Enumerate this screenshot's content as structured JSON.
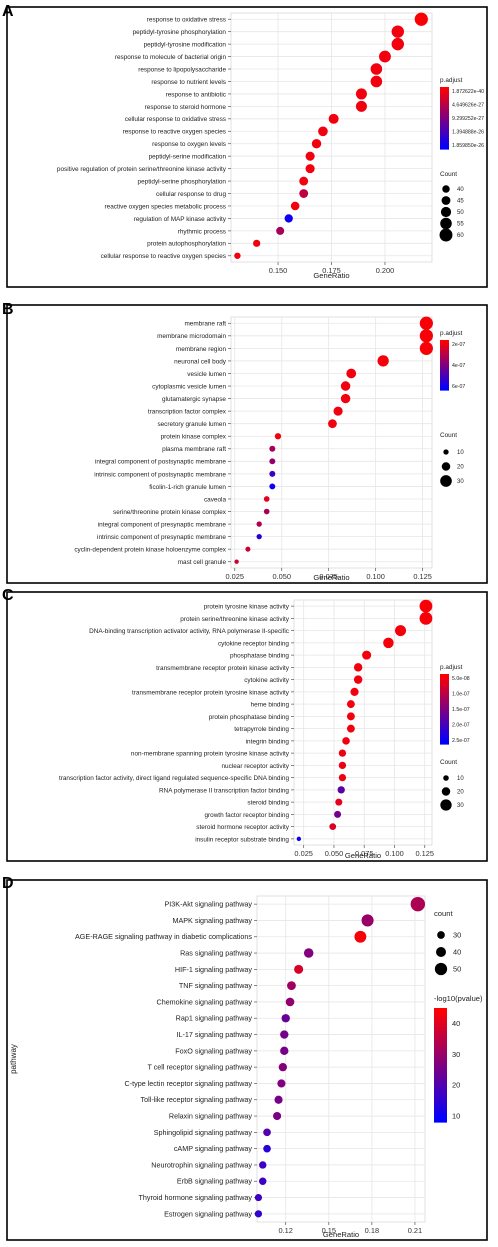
{
  "chart_data": [
    {
      "panel": "A",
      "type": "scatter",
      "xlabel": "GeneRatio",
      "ylabel": "",
      "x_ticks": [
        0.15,
        0.175,
        0.2
      ],
      "x_tick_labels": [
        "0.150",
        "0.175",
        "0.200"
      ],
      "xlim": [
        0.128,
        0.222
      ],
      "categories": [
        "response to oxidative stress",
        "peptidyl-tyrosine phosphorylation",
        "peptidyl-tyrosine modification",
        "response to molecule of bacterial origin",
        "response to lipopolysaccharide",
        "response to nutrient levels",
        "response to antibiotic",
        "response to steroid hormone",
        "cellular response to oxidative stress",
        "response to reactive oxygen species",
        "response to oxygen levels",
        "peptidyl-serine modification",
        "positive regulation of protein serine/threonine kinase activity",
        "peptidyl-serine phosphorylation",
        "cellular response to drug",
        "reactive oxygen species metabolic process",
        "regulation of MAP kinase activity",
        "rhythmic process",
        "protein autophosphorylation",
        "cellular response to reactive oxygen species"
      ],
      "gene_ratio": [
        0.217,
        0.206,
        0.206,
        0.2,
        0.196,
        0.196,
        0.189,
        0.189,
        0.176,
        0.171,
        0.168,
        0.165,
        0.165,
        0.162,
        0.162,
        0.158,
        0.155,
        0.151,
        0.14,
        0.131
      ],
      "count": [
        61,
        58,
        58,
        56,
        55,
        55,
        53,
        53,
        49,
        48,
        47,
        46,
        46,
        45,
        45,
        44,
        43,
        42,
        39,
        36
      ],
      "color_value": [
        0.02,
        0.05,
        0.05,
        0.05,
        0.05,
        0.05,
        0.05,
        0.05,
        0.05,
        0.05,
        0.05,
        0.05,
        0.05,
        0.05,
        0.25,
        0.05,
        0.95,
        0.35,
        0.05,
        0.05
      ],
      "color_legend_title": "p.adjust",
      "color_legend_labels": [
        "1.872622e-40",
        "4.649626e-27",
        "9.299252e-27",
        "1.394888e-26",
        "1.859850e-26"
      ],
      "size_legend_title": "Count",
      "size_legend_values": [
        40,
        45,
        50,
        55,
        60
      ]
    },
    {
      "panel": "B",
      "type": "scatter",
      "xlabel": "GeneRatio",
      "ylabel": "",
      "x_ticks": [
        0.025,
        0.05,
        0.075,
        0.1,
        0.125
      ],
      "x_tick_labels": [
        "0.025",
        "0.050",
        "0.075",
        "0.100",
        "0.125"
      ],
      "xlim": [
        0.023,
        0.13
      ],
      "categories": [
        "membrane raft",
        "membrane microdomain",
        "membrane region",
        "neuronal cell body",
        "vesicle lumen",
        "cytoplasmic vesicle lumen",
        "glutamatergic synapse",
        "transcription factor complex",
        "secretory granule lumen",
        "protein kinase complex",
        "plasma membrane raft",
        "integral component of postsynaptic membrane",
        "intrinsic component of postsynaptic membrane",
        "ficolin-1-rich granule lumen",
        "caveola",
        "serine/threonine protein kinase complex",
        "integral component of presynaptic membrane",
        "intrinsic component of presynaptic membrane",
        "cyclin-dependent protein kinase holoenzyme complex",
        "mast cell granule"
      ],
      "gene_ratio": [
        0.127,
        0.127,
        0.127,
        0.104,
        0.087,
        0.084,
        0.084,
        0.08,
        0.077,
        0.048,
        0.045,
        0.045,
        0.045,
        0.045,
        0.042,
        0.042,
        0.038,
        0.038,
        0.032,
        0.026
      ],
      "count": [
        35,
        35,
        35,
        29,
        24,
        23,
        23,
        22,
        21,
        13,
        12,
        12,
        12,
        12,
        11,
        11,
        10,
        10,
        9,
        7
      ],
      "color_value": [
        0.03,
        0.03,
        0.03,
        0.04,
        0.05,
        0.05,
        0.05,
        0.06,
        0.05,
        0.06,
        0.35,
        0.42,
        0.75,
        0.95,
        0.1,
        0.35,
        0.3,
        0.85,
        0.2,
        0.2
      ],
      "color_legend_title": "p.adjust",
      "color_legend_labels": [
        "2e-07",
        "4e-07",
        "6e-07"
      ],
      "size_legend_title": "Count",
      "size_legend_values": [
        10,
        20,
        30
      ]
    },
    {
      "panel": "C",
      "type": "scatter",
      "xlabel": "GeneRatio",
      "ylabel": "",
      "x_ticks": [
        0.025,
        0.05,
        0.075,
        0.1,
        0.125
      ],
      "x_tick_labels": [
        "0.025",
        "0.050",
        "0.075",
        "0.100",
        "0.125"
      ],
      "xlim": [
        0.017,
        0.131
      ],
      "categories": [
        "protein tyrosine kinase activity",
        "protein serine/threonine kinase activity",
        "DNA-binding transcription activator activity, RNA polymerase II-specific",
        "cytokine receptor binding",
        "phosphatase binding",
        "transmembrane receptor protein kinase activity",
        "cytokine activity",
        "transmembrane receptor protein tyrosine kinase activity",
        "heme binding",
        "protein phosphatase binding",
        "tetrapyrrole binding",
        "integrin binding",
        "non-membrane spanning protein tyrosine kinase activity",
        "nuclear receptor activity",
        "transcription factor activity, direct ligand regulated sequence-specific DNA binding",
        "RNA polymerase II transcription factor binding",
        "steroid binding",
        "growth factor receptor binding",
        "steroid hormone receptor activity",
        "insulin receptor substrate binding"
      ],
      "gene_ratio": [
        0.126,
        0.126,
        0.105,
        0.095,
        0.077,
        0.07,
        0.07,
        0.067,
        0.064,
        0.064,
        0.064,
        0.06,
        0.057,
        0.057,
        0.057,
        0.056,
        0.054,
        0.053,
        0.049,
        0.021
      ],
      "count": [
        35,
        35,
        29,
        27,
        22,
        20,
        20,
        19,
        18,
        18,
        18,
        17,
        16,
        16,
        16,
        16,
        15,
        15,
        14,
        6
      ],
      "color_value": [
        0.03,
        0.03,
        0.04,
        0.04,
        0.04,
        0.05,
        0.05,
        0.05,
        0.05,
        0.05,
        0.05,
        0.06,
        0.08,
        0.08,
        0.08,
        0.65,
        0.1,
        0.55,
        0.15,
        0.97
      ],
      "color_legend_title": "p.adjust",
      "color_legend_labels": [
        "5.0e-08",
        "1.0e-07",
        "1.5e-07",
        "2.0e-07",
        "2.5e-07"
      ],
      "size_legend_title": "Count",
      "size_legend_values": [
        10,
        20,
        30
      ]
    },
    {
      "panel": "D",
      "type": "scatter",
      "xlabel": "GeneRatio",
      "ylabel": "pathway",
      "x_ticks": [
        0.12,
        0.15,
        0.18,
        0.21
      ],
      "x_tick_labels": [
        "0.12",
        "0.15",
        "0.18",
        "0.21"
      ],
      "xlim": [
        0.1,
        0.217
      ],
      "categories": [
        "PI3K-Akt signaling pathway",
        "MAPK signaling pathway",
        "AGE-RAGE signaling pathway in diabetic complications",
        "Ras signaling pathway",
        "HIF-1 signaling pathway",
        "TNF signaling pathway",
        "Chemokine signaling pathway",
        "Rap1 signaling pathway",
        "IL-17 signaling pathway",
        "FoxO signaling pathway",
        "T cell receptor signaling pathway",
        "C-type lectin receptor signaling pathway",
        "Toll-like receptor signaling pathway",
        "Relaxin signaling pathway",
        "Sphingolipid signaling pathway",
        "cAMP signaling pathway",
        "Neurotrophin signaling pathway",
        "ErbB signaling pathway",
        "Thyroid hormone signaling pathway",
        "Estrogen signaling pathway"
      ],
      "gene_ratio": [
        0.212,
        0.177,
        0.172,
        0.136,
        0.129,
        0.124,
        0.123,
        0.12,
        0.119,
        0.119,
        0.118,
        0.117,
        0.115,
        0.114,
        0.107,
        0.107,
        0.104,
        0.104,
        0.101,
        0.101
      ],
      "count": [
        59,
        49,
        48,
        38,
        36,
        35,
        34,
        33,
        33,
        33,
        33,
        32,
        32,
        32,
        30,
        30,
        29,
        29,
        28,
        28
      ],
      "color_value": [
        33,
        30,
        44,
        27,
        39,
        31,
        29,
        23,
        25,
        25,
        27,
        27,
        25,
        26,
        20,
        14,
        17,
        17,
        17,
        15
      ],
      "color_legend_title": "-log10(pvalue)",
      "color_legend_ticks": [
        10,
        20,
        30,
        40
      ],
      "size_legend_title": "count",
      "size_legend_values": [
        30,
        40,
        50
      ]
    }
  ],
  "colors": {
    "low": "#ff0000",
    "high": "#0000ff",
    "grid": "#ebebeb"
  }
}
